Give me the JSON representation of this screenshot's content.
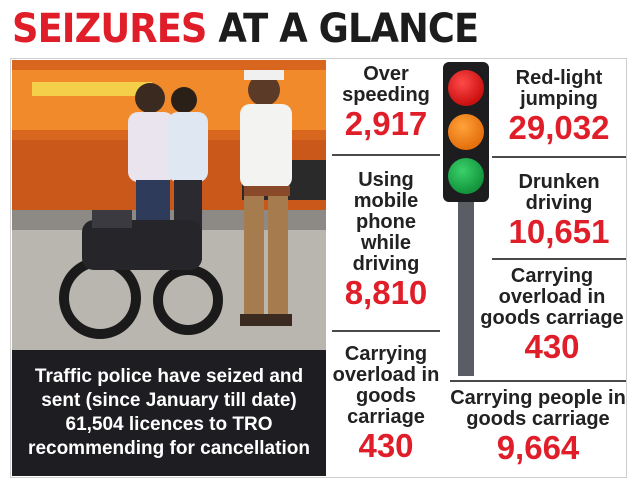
{
  "headline": {
    "part1": "SEIZURES",
    "part2": "AT A GLANCE"
  },
  "caption": "Traffic police have seized and\nsent (since January till date)\n61,504 licences to TRO\nrecommending for cancellation",
  "stats": {
    "overspeeding": {
      "label": "Over\nspeeding",
      "value": "2,917"
    },
    "red_light": {
      "label": "Red-light\njumping",
      "value": "29,032"
    },
    "mobile_phone": {
      "label": "Using\nmobile\nphone\nwhile\ndriving",
      "value": "8,810"
    },
    "drunken": {
      "label": "Drunken\ndriving",
      "value": "10,651"
    },
    "overload_right": {
      "label": "Carrying\noverload in\ngoods carriage",
      "value": "430"
    },
    "overload_left": {
      "label": "Carrying\noverload in\ngoods\ncarriage",
      "value": "430"
    },
    "people_goods": {
      "label": "Carrying people in\ngoods carriage",
      "value": "9,664"
    }
  },
  "colors": {
    "accent_red": "#e01e2a",
    "caption_bg": "#1e1e22",
    "text_dark": "#222222"
  },
  "icons": {
    "traffic_light": "traffic-light-icon"
  }
}
